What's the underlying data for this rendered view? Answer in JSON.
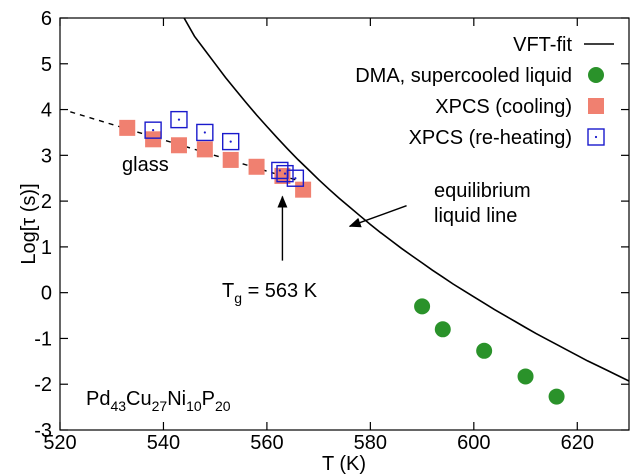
{
  "chart_data": {
    "type": "scatter",
    "xlabel": "T (K)",
    "ylabel": "Log[τ (s)]",
    "xlim": [
      520,
      630
    ],
    "ylim": [
      -3,
      6
    ],
    "x_ticks": [
      520,
      540,
      560,
      580,
      600,
      620
    ],
    "y_ticks": [
      -3,
      -2,
      -1,
      0,
      1,
      2,
      3,
      4,
      5,
      6
    ],
    "grid": false,
    "legend_position": "top-right",
    "series": [
      {
        "name": "VFT-fit",
        "kind": "line",
        "color": "#000000",
        "x": [
          544,
          546,
          548,
          550,
          552,
          554,
          556,
          558,
          560,
          562,
          564,
          566,
          568,
          570,
          572,
          574,
          576,
          578,
          580,
          582,
          584,
          586,
          588,
          590,
          592,
          594,
          596,
          598,
          600,
          602,
          604,
          606,
          608,
          610,
          612,
          614,
          616,
          618,
          620,
          622,
          624,
          626,
          628,
          630
        ],
        "y": [
          6.0,
          5.6,
          5.3,
          5.0,
          4.7,
          4.42,
          4.15,
          3.88,
          3.63,
          3.38,
          3.14,
          2.91,
          2.69,
          2.47,
          2.26,
          2.06,
          1.87,
          1.68,
          1.49,
          1.31,
          1.14,
          0.97,
          0.81,
          0.65,
          0.49,
          0.34,
          0.19,
          0.05,
          -0.09,
          -0.23,
          -0.37,
          -0.5,
          -0.63,
          -0.76,
          -0.89,
          -1.01,
          -1.13,
          -1.25,
          -1.37,
          -1.49,
          -1.6,
          -1.71,
          -1.82,
          -1.93
        ]
      },
      {
        "name": "DMA, supercooled liquid",
        "kind": "circle",
        "color": "#2a922a",
        "x": [
          590,
          594,
          602,
          610,
          616
        ],
        "y": [
          -0.3,
          -0.8,
          -1.27,
          -1.83,
          -2.27
        ]
      },
      {
        "name": "XPCS (cooling)",
        "kind": "filled-square",
        "color": "#f08070",
        "x": [
          533,
          538,
          543,
          548,
          553,
          558,
          563,
          567
        ],
        "y": [
          3.6,
          3.35,
          3.22,
          3.13,
          2.9,
          2.75,
          2.55,
          2.25
        ]
      },
      {
        "name": "XPCS (re-heating)",
        "kind": "open-square",
        "color": "#1a1acc",
        "x": [
          538,
          543,
          548,
          553,
          562.5,
          563.5,
          565.5
        ],
        "y": [
          3.55,
          3.78,
          3.5,
          3.3,
          2.67,
          2.6,
          2.5
        ]
      },
      {
        "name": "",
        "kind": "dashed-line",
        "color": "#000000",
        "x": [
          522,
          566
        ],
        "y": [
          3.95,
          2.45
        ]
      }
    ],
    "annotations": {
      "glass": "glass",
      "eq_line_1": "equilibrium",
      "eq_line_2": "liquid line",
      "tg_main": "T",
      "tg_sub": "g",
      "tg_rest": " = 563 K",
      "tg_arrow_from": [
        563,
        0.7
      ],
      "tg_arrow_to": [
        563,
        2.1
      ],
      "eq_arrow_from": [
        587,
        1.9
      ],
      "eq_arrow_to": [
        576,
        1.45
      ],
      "alloy": {
        "parts": [
          {
            "t": "Pd",
            "sub": false
          },
          {
            "t": "43",
            "sub": true
          },
          {
            "t": "Cu",
            "sub": false
          },
          {
            "t": "27",
            "sub": true
          },
          {
            "t": "Ni",
            "sub": false
          },
          {
            "t": "10",
            "sub": true
          },
          {
            "t": "P",
            "sub": false
          },
          {
            "t": "20",
            "sub": true
          }
        ]
      }
    }
  }
}
